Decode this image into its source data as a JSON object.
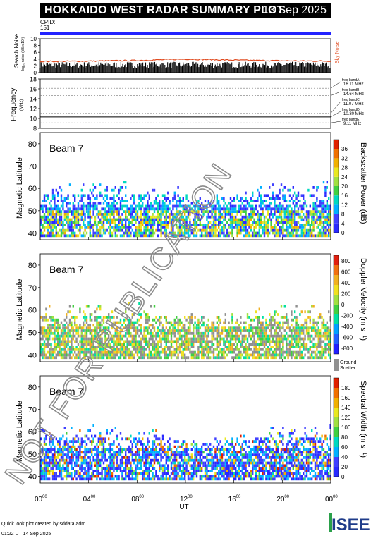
{
  "header": {
    "title": "HOKKAIDO WEST RADAR SUMMARY PLOT",
    "date": "13 Sep 2025",
    "cpid_label": "CPID:",
    "cpid_value": "151"
  },
  "noise_panel": {
    "ylabel": "Search Noise",
    "ylabel_sub": "log₁₀ noise (dB x 10³)",
    "right_label": "Sky Noise",
    "ticks": [
      "0",
      "2",
      "4",
      "6",
      "8",
      "10"
    ]
  },
  "freq_panel": {
    "ylabel": "Frequency",
    "ylabel_sub": "(MHz)",
    "ticks": [
      "8",
      "10",
      "12",
      "14",
      "16",
      "18"
    ],
    "bands": [
      {
        "label": "freq bandA",
        "value": "16.11 MHz"
      },
      {
        "label": "freq bandB",
        "value": "14.64 MHz"
      },
      {
        "label": "freq bandC",
        "value": "11.07 MHz"
      },
      {
        "label": "freq bandD",
        "value": "10.30 MHz"
      },
      {
        "label": "freq bandE",
        "value": "9.11 MHz"
      }
    ]
  },
  "panels": [
    {
      "beam": "Beam  7",
      "ylabel": "Magnetic Latitude",
      "cbar_label": "Backscatter Power (dB)",
      "cbar_ticks": [
        "0",
        "4",
        "8",
        "12",
        "16",
        "20",
        "24",
        "28",
        "32",
        "36"
      ]
    },
    {
      "beam": "Beam  7",
      "ylabel": "Magnetic Latitude",
      "cbar_label": "Doppler Velocity (m s⁻¹)",
      "cbar_ticks": [
        "-800",
        "-600",
        "-400",
        "-200",
        "0",
        "200",
        "400",
        "600",
        "800"
      ],
      "ground_label": "Ground",
      "scatter_label": "Scatter"
    },
    {
      "beam": "Beam  7",
      "ylabel": "Magnetic Latitude",
      "cbar_label": "Spectral Width (m s⁻¹)",
      "cbar_ticks": [
        "0",
        "20",
        "40",
        "60",
        "80",
        "100",
        "120",
        "140",
        "160",
        "180"
      ]
    }
  ],
  "lat_ticks": [
    "40",
    "50",
    "60",
    "70",
    "80"
  ],
  "x_axis": {
    "label": "UT",
    "ticks": [
      {
        "h": "00",
        "m": "00"
      },
      {
        "h": "04",
        "m": "00"
      },
      {
        "h": "08",
        "m": "00"
      },
      {
        "h": "12",
        "m": "00"
      },
      {
        "h": "16",
        "m": "00"
      },
      {
        "h": "20",
        "m": "00"
      },
      {
        "h": "00",
        "m": "00"
      }
    ]
  },
  "watermark": "NOT FOR PUBLICATION",
  "footer": {
    "line1": "Quick look plot created by sddata.adm",
    "line2": "01:22 UT 14 Sep 2025"
  },
  "logo": "ISEE",
  "colors": {
    "title_bg": "#000000",
    "cpid_bar": "#2323ff",
    "noise_line": "#e04a1f",
    "sky_noise": "#e04a1f"
  },
  "chart_data": [
    {
      "type": "line",
      "title": "Search Noise",
      "ylim": [
        0,
        10
      ],
      "x_unit": "UT hours",
      "xlim": [
        0,
        24
      ],
      "series": [
        {
          "name": "Sky Noise",
          "x": [
            0,
            4,
            8,
            12,
            16,
            20,
            24
          ],
          "y": [
            3.3,
            3.4,
            3.6,
            4.0,
            3.7,
            3.5,
            3.4
          ]
        }
      ]
    },
    {
      "type": "line",
      "title": "Frequency",
      "ylim": [
        8,
        18
      ],
      "xlim": [
        0,
        24
      ],
      "series": [
        {
          "x": [
            0,
            24
          ],
          "y": [
            10.3,
            10.3
          ]
        }
      ]
    },
    {
      "type": "heatmap",
      "title": "Backscatter Power (dB)",
      "xlim": [
        0,
        24
      ],
      "ylim": [
        37,
        85
      ],
      "clim": [
        0,
        36
      ]
    },
    {
      "type": "heatmap",
      "title": "Doppler Velocity (m s⁻¹)",
      "xlim": [
        0,
        24
      ],
      "ylim": [
        37,
        85
      ],
      "clim": [
        -800,
        800
      ]
    },
    {
      "type": "heatmap",
      "title": "Spectral Width (m s⁻¹)",
      "xlim": [
        0,
        24
      ],
      "ylim": [
        37,
        85
      ],
      "clim": [
        0,
        180
      ]
    }
  ]
}
